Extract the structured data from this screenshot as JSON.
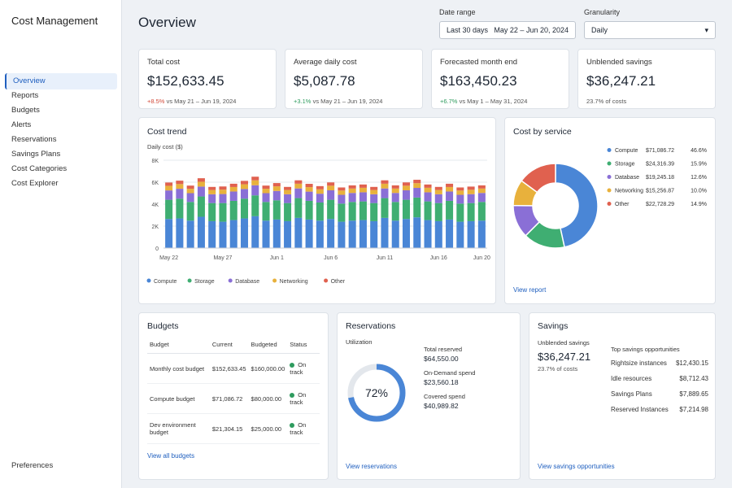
{
  "sidebar": {
    "title": "Cost Management",
    "nav": [
      "Overview",
      "Reports",
      "Budgets",
      "Alerts",
      "Reservations",
      "Savings Plans",
      "Cost Categories",
      "Cost Explorer"
    ],
    "footer": "Preferences"
  },
  "header": {
    "title": "Overview",
    "date_range_label": "Date range",
    "date_preset": "Last 30 days",
    "date_range": "May 22 – Jun 20, 2024",
    "granularity_label": "Granularity",
    "granularity": "Daily"
  },
  "kpis": [
    {
      "label": "Total cost",
      "value": "$152,633.45",
      "delta": "+8.5%",
      "comparison": "vs May 21 – Jun 19, 2024"
    },
    {
      "label": "Average daily cost",
      "value": "$5,087.78",
      "delta": "+3.1%",
      "comparison": "vs May 21 – Jun 19, 2024"
    },
    {
      "label": "Forecasted month end",
      "value": "$163,450.23",
      "delta": "+6.7%",
      "comparison": "vs May 1 – May 31, 2024"
    },
    {
      "label": "Unblended savings",
      "value": "$36,247.21",
      "comparison": "23.7% of costs"
    }
  ],
  "chart_data": [
    {
      "type": "bar",
      "stacked": true,
      "title": "Cost trend",
      "y_label": "Daily cost ($)",
      "categories": [
        "May 22",
        null,
        null,
        null,
        null,
        "May 27",
        null,
        null,
        null,
        null,
        "Jun 1",
        null,
        null,
        null,
        null,
        "Jun 6",
        null,
        null,
        null,
        null,
        "Jun 11",
        null,
        null,
        null,
        null,
        "Jun 16",
        null,
        null,
        null,
        "Jun 20"
      ],
      "series": [
        {
          "name": "Compute",
          "color": "#4a86d6",
          "values": [
            2650,
            2700,
            2500,
            2850,
            2450,
            2400,
            2550,
            2700,
            2900,
            2500,
            2600,
            2450,
            2750,
            2600,
            2500,
            2650,
            2400,
            2500,
            2550,
            2450,
            2750,
            2500,
            2650,
            2800,
            2550,
            2450,
            2600,
            2400,
            2450,
            2500
          ]
        },
        {
          "name": "Storage",
          "color": "#3fae72",
          "values": [
            1750,
            1800,
            1700,
            1850,
            1650,
            1700,
            1750,
            1800,
            1900,
            1700,
            1750,
            1650,
            1800,
            1700,
            1650,
            1750,
            1650,
            1700,
            1700,
            1650,
            1800,
            1700,
            1750,
            1800,
            1700,
            1650,
            1700,
            1650,
            1650,
            1700
          ]
        },
        {
          "name": "Database",
          "color": "#8a6fd6",
          "values": [
            850,
            900,
            800,
            900,
            800,
            820,
            850,
            880,
            920,
            800,
            850,
            800,
            880,
            840,
            800,
            860,
            800,
            820,
            830,
            800,
            880,
            820,
            860,
            880,
            830,
            800,
            850,
            800,
            810,
            820
          ]
        },
        {
          "name": "Networking",
          "color": "#e8b13c",
          "values": [
            420,
            430,
            400,
            440,
            390,
            400,
            410,
            430,
            450,
            400,
            420,
            390,
            430,
            410,
            400,
            420,
            390,
            400,
            410,
            390,
            430,
            400,
            420,
            430,
            410,
            390,
            410,
            390,
            400,
            400
          ]
        },
        {
          "name": "Other",
          "color": "#e0614f",
          "values": [
            300,
            310,
            290,
            320,
            280,
            290,
            300,
            310,
            330,
            290,
            300,
            280,
            310,
            300,
            290,
            300,
            280,
            290,
            300,
            280,
            310,
            290,
            300,
            310,
            300,
            280,
            300,
            280,
            290,
            290
          ]
        }
      ],
      "ylim": [
        0,
        8000
      ],
      "yticks": [
        0,
        {
          "value": 2000,
          "label": "2K"
        },
        {
          "value": 4000,
          "label": "4K"
        },
        {
          "value": 6000,
          "label": "6K"
        },
        {
          "value": 8000,
          "label": "8K"
        }
      ],
      "grid": true,
      "legend": "bottom"
    },
    {
      "type": "pie",
      "donut": true,
      "title": "Cost by service",
      "categories": [
        "Compute",
        "Storage",
        "Database",
        "Networking",
        "Other"
      ],
      "values": [
        46.6,
        15.9,
        12.6,
        10.0,
        14.9
      ],
      "value_labels": [
        "46.6%",
        "15.9%",
        "12.6%",
        "10.0%",
        "14.9%"
      ],
      "amounts": [
        "$71,086.72",
        "$24,316.39",
        "$19,245.18",
        "$15,256.87",
        "$22,728.29"
      ],
      "colors": [
        "#4a86d6",
        "#3fae72",
        "#8a6fd6",
        "#e8b13c",
        "#e0614f"
      ],
      "link": "View report"
    },
    {
      "type": "gauge",
      "title": "Utilization",
      "values": [
        72
      ],
      "value_labels": [
        "72%"
      ],
      "ylim": [
        0,
        100
      ],
      "color": "#4a86d6"
    }
  ],
  "budgets": {
    "title": "Budgets",
    "columns": [
      "Budget",
      "Current",
      "Budgeted",
      "Status"
    ],
    "rows": [
      [
        "Monthly cost budget",
        "$152,633.45",
        "$160,000.00",
        "On track"
      ],
      [
        "Compute budget",
        "$71,086.72",
        "$80,000.00",
        "On track"
      ],
      [
        "Dev environment budget",
        "$21,304.15",
        "$25,000.00",
        "On track"
      ]
    ],
    "link": "View all budgets"
  },
  "reservations": {
    "title": "Reservations",
    "stats": [
      {
        "label": "Total reserved",
        "value": "$64,550.00"
      },
      {
        "label": "On-Demand spend",
        "value": "$23,560.18"
      },
      {
        "label": "Covered spend",
        "value": "$40,989.82"
      }
    ],
    "link": "View reservations"
  },
  "savings": {
    "title": "Savings",
    "label": "Unblended savings",
    "value": "$36,247.21",
    "note": "23.7% of costs",
    "list_title": "Top savings opportunities",
    "items": [
      {
        "label": "Rightsize instances",
        "value": "$12,430.15"
      },
      {
        "label": "Idle resources",
        "value": "$8,712.43"
      },
      {
        "label": "Savings Plans",
        "value": "$7,889.65"
      },
      {
        "label": "Reserved Instances",
        "value": "$7,214.98"
      }
    ],
    "link": "View savings opportunities"
  }
}
